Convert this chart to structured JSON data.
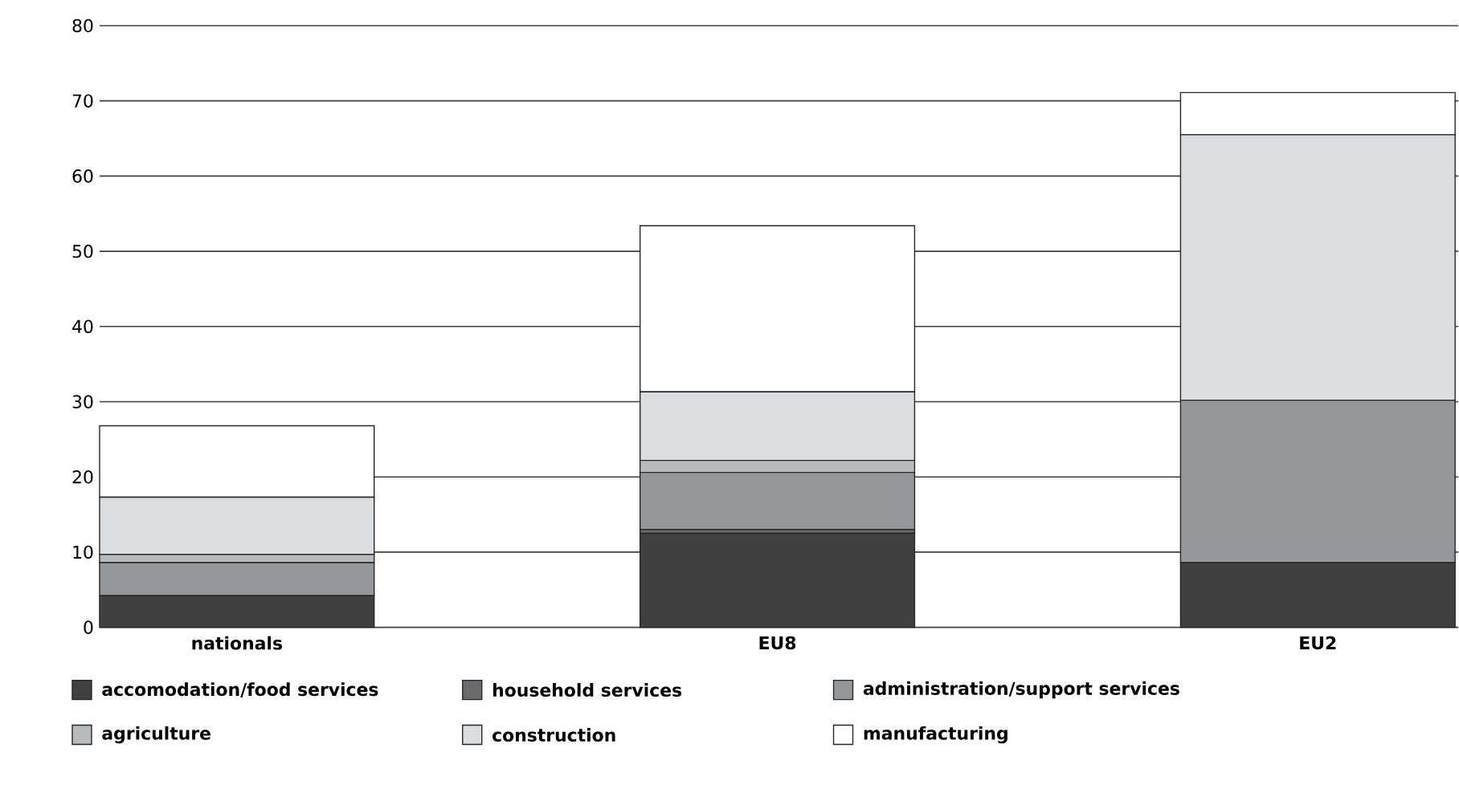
{
  "chart_data": {
    "type": "bar",
    "stacked": true,
    "categories": [
      "nationals",
      "EU8",
      "EU2"
    ],
    "series": [
      {
        "name": "accomodation/food services",
        "color": "#404040",
        "values": [
          4.2,
          12.5,
          8.6
        ]
      },
      {
        "name": "household services",
        "color": "#6b6b6d",
        "values": [
          0,
          0.5,
          0
        ]
      },
      {
        "name": "administration/support services",
        "color": "#96979a",
        "values": [
          4.4,
          7.6,
          21.6
        ]
      },
      {
        "name": "agriculture",
        "color": "#b9babc",
        "values": [
          1.1,
          1.6,
          0
        ]
      },
      {
        "name": "construction",
        "color": "#dcdddf",
        "values": [
          7.6,
          9.1,
          35.3
        ]
      },
      {
        "name": "manufacturing",
        "color": "#ffffff",
        "values": [
          9.5,
          22.1,
          5.6
        ]
      }
    ],
    "ylim": [
      0,
      80
    ],
    "yticks": [
      0,
      10,
      20,
      30,
      40,
      50,
      60,
      70,
      80
    ],
    "grid": "y",
    "legend": "bottom"
  }
}
